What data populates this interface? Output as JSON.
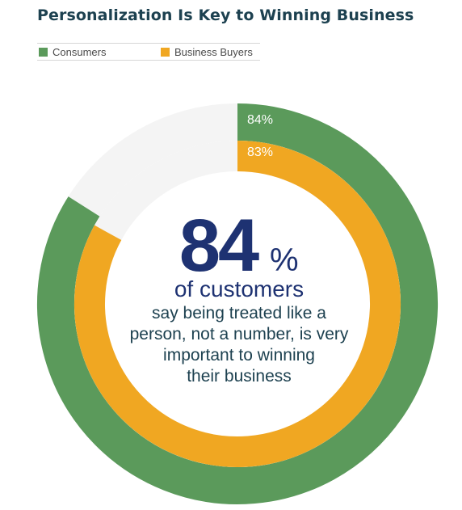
{
  "title": "Personalization Is Key to Winning Business",
  "legend": [
    {
      "label": "Consumers",
      "color": "#5b9a5b"
    },
    {
      "label": "Business Buyers",
      "color": "#f0a722"
    }
  ],
  "chart_data": {
    "type": "donut",
    "title": "Personalization Is Key to Winning Business",
    "series": [
      {
        "name": "Consumers",
        "value": 84,
        "label": "84%",
        "color": "#5b9a5b"
      },
      {
        "name": "Business Buyers",
        "value": 83,
        "label": "83%",
        "color": "#f0a722"
      }
    ],
    "max": 100,
    "track_color": "#f4f4f4"
  },
  "center": {
    "big_number": "84",
    "percent": "%",
    "headline": "of customers",
    "lines": [
      "say being treated like a",
      "person, not a number, is very",
      "important to winning",
      "their business"
    ]
  },
  "colors": {
    "navy": "#1e3272",
    "text": "#1d4150"
  }
}
